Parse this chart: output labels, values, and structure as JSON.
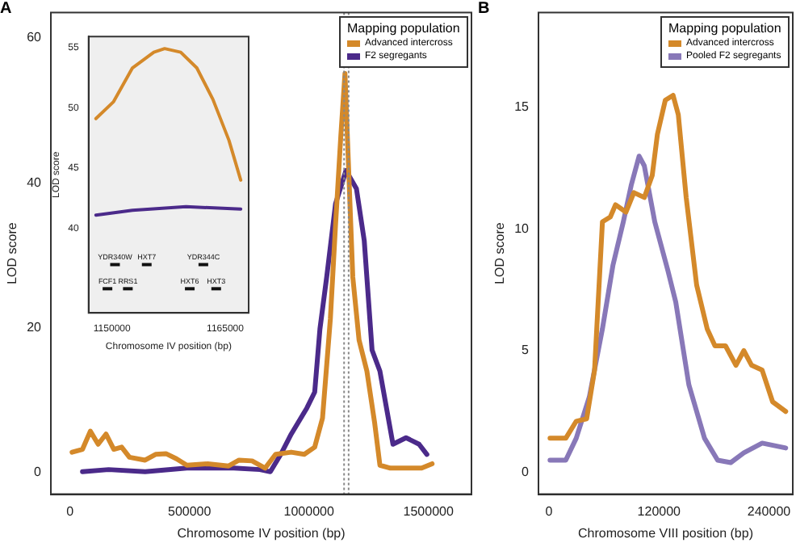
{
  "chart_data": [
    {
      "type": "line",
      "title": "A",
      "xlabel": "Chromosome IV position (bp)",
      "ylabel": "LOD score",
      "legend_title": "Mapping population",
      "legend": "top right",
      "marker": "none",
      "xlim": [
        -80000,
        1680000
      ],
      "ylim": [
        -3,
        63.5
      ],
      "xticks": [
        0,
        500000,
        1000000,
        1500000
      ],
      "yticks": [
        0,
        20,
        40,
        60
      ],
      "ref_lines": [
        {
          "axis": "x",
          "value": 1147000,
          "color": "#888888",
          "line_style": "dotted"
        },
        {
          "axis": "x",
          "value": 1166000,
          "color": "#888888",
          "line_style": "dotted"
        }
      ],
      "series": [
        {
          "name": "Advanced intercross",
          "color": "#d4892a",
          "x": [
            8700,
            52400,
            85200,
            117900,
            150700,
            183400,
            216200,
            248900,
            314400,
            358100,
            401700,
            445400,
            489100,
            576400,
            663700,
            707400,
            762000,
            816600,
            860300,
            925800,
            980400,
            1024000,
            1056700,
            1089500,
            1111300,
            1133200,
            1150700,
            1161600,
            1183400,
            1209600,
            1242400,
            1275100,
            1296900,
            1340600,
            1471600,
            1515300
          ],
          "values": [
            2.8,
            3.2,
            5.7,
            3.9,
            5.3,
            3.2,
            3.5,
            2.1,
            1.7,
            2.5,
            2.6,
            1.9,
            1.0,
            1.2,
            0.9,
            1.7,
            1.6,
            0.6,
            2.5,
            2.8,
            2.5,
            3.5,
            7.5,
            21.2,
            34.2,
            46.4,
            55.1,
            45.7,
            27.0,
            18.3,
            14.0,
            6.8,
            1.0,
            0.6,
            0.6,
            1.2
          ]
        },
        {
          "name": "F2 segregants",
          "color": "#4b2a8a",
          "x": [
            52400,
            161600,
            314400,
            489100,
            685600,
            794800,
            838400,
            882100,
            925800,
            991300,
            1024000,
            1045900,
            1074300,
            1111300,
            1155000,
            1198600,
            1231400,
            1264100,
            1296900,
            1351500,
            1406100,
            1460700,
            1493400
          ],
          "values": [
            0.1,
            0.4,
            0.1,
            0.6,
            0.6,
            0.4,
            0.1,
            2.5,
            5.3,
            8.9,
            11.1,
            19.8,
            27.0,
            37.1,
            41.7,
            39.2,
            32.0,
            16.9,
            14.0,
            3.9,
            4.8,
            3.9,
            2.5
          ]
        }
      ]
    },
    {
      "type": "line",
      "xlabel": "Chromosome IV position (bp)",
      "ylabel": "LOD score",
      "marker": "none",
      "xlim": [
        1146900,
        1168100
      ],
      "ylim": [
        33,
        55.9
      ],
      "xticks": [
        1150000,
        1165000
      ],
      "yticks": [
        40,
        45,
        50,
        55
      ],
      "annotations": [
        {
          "text": "YDR340W",
          "x": 1150400,
          "y": 37
        },
        {
          "text": "HXT7",
          "x": 1154600,
          "y": 37
        },
        {
          "text": "YDR344C",
          "x": 1162100,
          "y": 37
        },
        {
          "text": "FCF1",
          "x": 1149400,
          "y": 35
        },
        {
          "text": "RRS1",
          "x": 1152100,
          "y": 35
        },
        {
          "text": "HXT6",
          "x": 1160300,
          "y": 35
        },
        {
          "text": "HXT3",
          "x": 1163800,
          "y": 35
        }
      ],
      "series": [
        {
          "color": "#d4892a",
          "x": [
            1147870,
            1150210,
            1152710,
            1155540,
            1156970,
            1159100,
            1161230,
            1163360,
            1165490,
            1167050
          ],
          "values": [
            49.1,
            50.5,
            53.3,
            54.6,
            54.9,
            54.6,
            53.3,
            50.7,
            47.3,
            44.0
          ]
        },
        {
          "color": "#4b2a8a",
          "x": [
            1147870,
            1152710,
            1159800,
            1167050
          ],
          "values": [
            41.1,
            41.5,
            41.8,
            41.6
          ]
        }
      ]
    },
    {
      "type": "line",
      "title": "B",
      "xlabel": "Chromosome VIII position (bp)",
      "ylabel": "LOD score",
      "legend_title": "Mapping population",
      "legend": "top right",
      "marker": "none",
      "xlim": [
        -11500,
        266000
      ],
      "ylim": [
        -0.9,
        18.9
      ],
      "xticks": [
        0,
        120000,
        240000
      ],
      "yticks": [
        0,
        5,
        10,
        15
      ],
      "series": [
        {
          "name": "Advanced intercross",
          "color": "#d4892a",
          "x": [
            1100,
            18300,
            29700,
            41100,
            49700,
            58300,
            66900,
            72600,
            84000,
            92600,
            104000,
            112600,
            118300,
            126900,
            135400,
            141100,
            149700,
            161100,
            172600,
            181100,
            192600,
            204000,
            212600,
            221100,
            232600,
            244000,
            258300
          ],
          "values": [
            1.4,
            1.4,
            2.1,
            2.2,
            4.2,
            10.3,
            10.5,
            11.0,
            10.7,
            11.5,
            11.3,
            12.2,
            13.9,
            15.3,
            15.5,
            14.7,
            11.3,
            7.7,
            5.9,
            5.2,
            5.2,
            4.4,
            5.0,
            4.4,
            4.2,
            2.9,
            2.5
          ]
        },
        {
          "name": "Pooled F2 segregants",
          "color": "#8878b8",
          "x": [
            1100,
            18300,
            29700,
            44000,
            58300,
            69700,
            81100,
            89700,
            98300,
            104000,
            115400,
            129700,
            138300,
            152600,
            169700,
            184000,
            198300,
            212600,
            232600,
            258300
          ],
          "values": [
            0.5,
            0.5,
            1.4,
            3.1,
            5.9,
            8.5,
            10.3,
            11.8,
            13.0,
            12.6,
            10.3,
            8.3,
            7.0,
            3.6,
            1.4,
            0.5,
            0.4,
            0.8,
            1.2,
            1.0
          ]
        }
      ]
    }
  ]
}
